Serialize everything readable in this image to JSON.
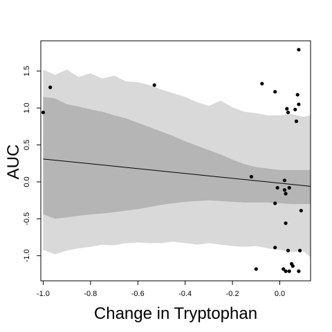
{
  "chart_data": {
    "type": "scatter",
    "xlabel": "Change in Tryptophan",
    "ylabel": "AUC",
    "xlim": [
      -1.01,
      0.13
    ],
    "ylim": [
      -1.34,
      1.91
    ],
    "x_ticks": [
      -1.0,
      -0.8,
      -0.6,
      -0.4,
      -0.2,
      0.0
    ],
    "x_tick_labels": [
      "-1.0",
      "-0.8",
      "-0.6",
      "-0.4",
      "-0.2",
      "0.0"
    ],
    "y_ticks": [
      -1.0,
      -0.5,
      0.0,
      0.5,
      1.0,
      1.5
    ],
    "y_tick_labels": [
      "-1.0",
      "-0.5",
      "0.0",
      "0.5",
      "1.0",
      "1.5"
    ],
    "grid": false,
    "regression_line": {
      "x": [
        -1.0,
        0.13
      ],
      "y": [
        0.31,
        -0.06
      ]
    },
    "inner_band": {
      "x": [
        -1.0,
        -0.95,
        -0.9,
        -0.85,
        -0.8,
        -0.75,
        -0.7,
        -0.65,
        -0.6,
        -0.55,
        -0.5,
        -0.45,
        -0.4,
        -0.35,
        -0.3,
        -0.25,
        -0.2,
        -0.15,
        -0.1,
        -0.05,
        0.0,
        0.05,
        0.1,
        0.13
      ],
      "upper": [
        1.15,
        1.13,
        1.05,
        1.02,
        0.98,
        0.95,
        0.9,
        0.86,
        0.8,
        0.74,
        0.68,
        0.62,
        0.55,
        0.49,
        0.43,
        0.37,
        0.3,
        0.24,
        0.2,
        0.18,
        0.16,
        0.16,
        0.16,
        0.16
      ],
      "lower": [
        -0.44,
        -0.5,
        -0.48,
        -0.46,
        -0.44,
        -0.43,
        -0.41,
        -0.39,
        -0.37,
        -0.34,
        -0.31,
        -0.29,
        -0.27,
        -0.26,
        -0.25,
        -0.26,
        -0.27,
        -0.28,
        -0.28,
        -0.28,
        -0.29,
        -0.3,
        -0.3,
        -0.3
      ]
    },
    "outer_band": {
      "x": [
        -1.0,
        -0.95,
        -0.9,
        -0.85,
        -0.8,
        -0.75,
        -0.7,
        -0.65,
        -0.6,
        -0.55,
        -0.5,
        -0.45,
        -0.4,
        -0.35,
        -0.3,
        -0.25,
        -0.2,
        -0.15,
        -0.1,
        -0.05,
        0.0,
        0.05,
        0.1,
        0.13
      ],
      "upper": [
        1.52,
        1.45,
        1.52,
        1.42,
        1.47,
        1.4,
        1.44,
        1.36,
        1.35,
        1.31,
        1.25,
        1.2,
        1.15,
        1.08,
        1.03,
        1.1,
        1.01,
        0.95,
        0.93,
        0.9,
        0.9,
        0.92,
        0.88,
        0.9
      ],
      "lower": [
        -0.92,
        -0.98,
        -0.93,
        -0.9,
        -0.88,
        -0.85,
        -0.86,
        -0.83,
        -0.82,
        -0.83,
        -0.83,
        -0.81,
        -0.83,
        -0.85,
        -0.83,
        -0.85,
        -0.87,
        -0.88,
        -0.87,
        -0.9,
        -0.92,
        -0.95,
        -0.94,
        -1.02
      ]
    },
    "points": [
      {
        "x": -1.0,
        "y": 0.94
      },
      {
        "x": -0.97,
        "y": 1.28
      },
      {
        "x": -0.53,
        "y": 1.31
      },
      {
        "x": -0.12,
        "y": 0.07
      },
      {
        "x": -0.1,
        "y": -1.18
      },
      {
        "x": -0.075,
        "y": 1.33
      },
      {
        "x": -0.02,
        "y": 1.22
      },
      {
        "x": -0.02,
        "y": -0.29
      },
      {
        "x": -0.02,
        "y": -0.89
      },
      {
        "x": -0.01,
        "y": -0.08
      },
      {
        "x": 0.015,
        "y": -1.18
      },
      {
        "x": 0.02,
        "y": 0.02
      },
      {
        "x": 0.02,
        "y": -0.11
      },
      {
        "x": 0.025,
        "y": -0.16
      },
      {
        "x": 0.025,
        "y": -0.56
      },
      {
        "x": 0.025,
        "y": -1.21
      },
      {
        "x": 0.03,
        "y": 0.99
      },
      {
        "x": 0.035,
        "y": 0.94
      },
      {
        "x": 0.035,
        "y": -0.93
      },
      {
        "x": 0.04,
        "y": -0.08
      },
      {
        "x": 0.04,
        "y": -1.21
      },
      {
        "x": 0.05,
        "y": -1.11
      },
      {
        "x": 0.055,
        "y": -1.14
      },
      {
        "x": 0.065,
        "y": 0.98
      },
      {
        "x": 0.07,
        "y": 0.82
      },
      {
        "x": 0.075,
        "y": 1.18
      },
      {
        "x": 0.08,
        "y": 1.05
      },
      {
        "x": 0.08,
        "y": 1.79
      },
      {
        "x": 0.08,
        "y": -1.21
      },
      {
        "x": 0.085,
        "y": -0.93
      },
      {
        "x": 0.09,
        "y": -0.39
      }
    ],
    "colors": {
      "outer_band": "#d9d9d9",
      "inner_band": "#b5b5b5",
      "line": "#000000",
      "points": "#000000"
    }
  }
}
